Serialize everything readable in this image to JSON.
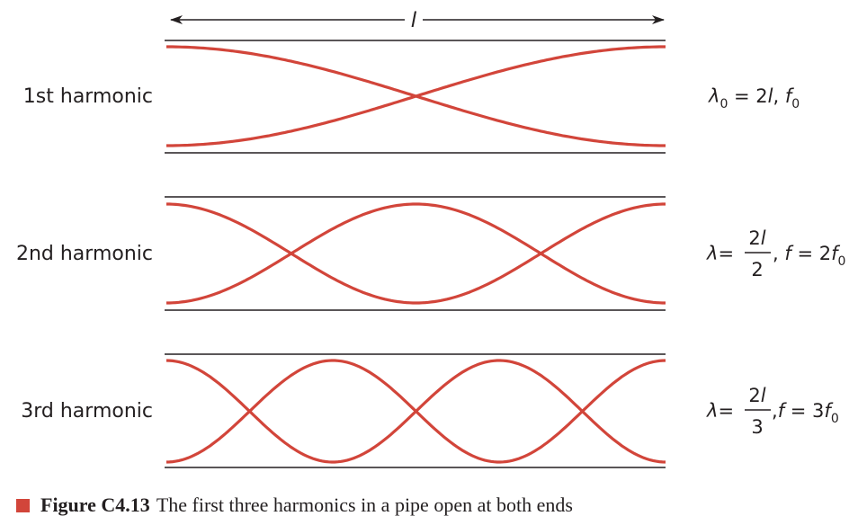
{
  "length_label": "l",
  "harmonics": [
    {
      "label": "1st harmonic",
      "n": 1,
      "formula": {
        "lhs": "λ",
        "lhs_sub": "0",
        "eq": " = 2",
        "var": "l",
        "sep": ", ",
        "f": "f",
        "f_sub": "0"
      }
    },
    {
      "label": "2nd harmonic",
      "n": 2,
      "formula": {
        "lhs": "λ",
        "eq": "=",
        "num": "2",
        "num_var": "l",
        "den": "2",
        "sep": ",",
        "rhs_f": "f",
        "rhs_eq": " = 2",
        "rhs_f2": "f",
        "rhs_sub": "0"
      }
    },
    {
      "label": "3rd harmonic",
      "n": 3,
      "formula": {
        "lhs": "λ",
        "eq": "=",
        "num": "2",
        "num_var": "l",
        "den": "3",
        "sep": ",",
        "rhs_f": "f",
        "rhs_eq": " = 3",
        "rhs_f2": "f",
        "rhs_sub": "0"
      }
    }
  ],
  "caption": {
    "number": "Figure C4.13",
    "text": "The first three harmonics in a pipe open at both ends"
  },
  "colors": {
    "wave": "#d2453a",
    "line": "#231f20",
    "caption_square": "#d2453a"
  }
}
